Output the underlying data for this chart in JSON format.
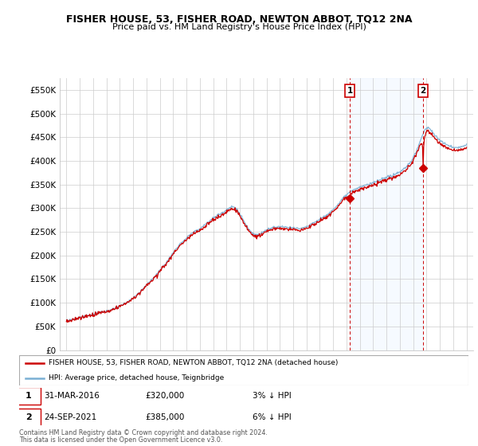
{
  "title": "FISHER HOUSE, 53, FISHER ROAD, NEWTON ABBOT, TQ12 2NA",
  "subtitle": "Price paid vs. HM Land Registry's House Price Index (HPI)",
  "ylabel_ticks": [
    "£0",
    "£50K",
    "£100K",
    "£150K",
    "£200K",
    "£250K",
    "£300K",
    "£350K",
    "£400K",
    "£450K",
    "£500K",
    "£550K"
  ],
  "ytick_vals": [
    0,
    50000,
    100000,
    150000,
    200000,
    250000,
    300000,
    350000,
    400000,
    450000,
    500000,
    550000
  ],
  "ylim": [
    0,
    575000
  ],
  "xlim_start": 1994.5,
  "xlim_end": 2025.5,
  "sale1_date": 2016.25,
  "sale1_price": 320000,
  "sale2_date": 2021.73,
  "sale2_price": 385000,
  "legend_line1": "FISHER HOUSE, 53, FISHER ROAD, NEWTON ABBOT, TQ12 2NA (detached house)",
  "legend_line2": "HPI: Average price, detached house, Teignbridge",
  "footer": "Contains HM Land Registry data © Crown copyright and database right 2024.\nThis data is licensed under the Open Government Licence v3.0.",
  "house_color": "#cc0000",
  "hpi_color": "#7ab0d4",
  "shade_color": "#ddeeff",
  "dashed_color": "#cc0000",
  "background_color": "#ffffff",
  "grid_color": "#cccccc",
  "hpi_knots": [
    1995,
    1996,
    1997,
    1998,
    1999,
    2000,
    2001,
    2002,
    2003,
    2004,
    2005,
    2006,
    2007,
    2007.5,
    2008,
    2009,
    2010,
    2011,
    2012,
    2013,
    2014,
    2015,
    2016,
    2017,
    2018,
    2019,
    2020,
    2021,
    2021.5,
    2022,
    2022.5,
    2023,
    2024,
    2025
  ],
  "hpi_values": [
    62000,
    68000,
    76000,
    83000,
    93000,
    110000,
    138000,
    168000,
    205000,
    238000,
    258000,
    280000,
    298000,
    305000,
    290000,
    248000,
    255000,
    262000,
    258000,
    262000,
    278000,
    298000,
    330000,
    345000,
    355000,
    365000,
    378000,
    408000,
    440000,
    470000,
    460000,
    445000,
    430000,
    435000
  ]
}
